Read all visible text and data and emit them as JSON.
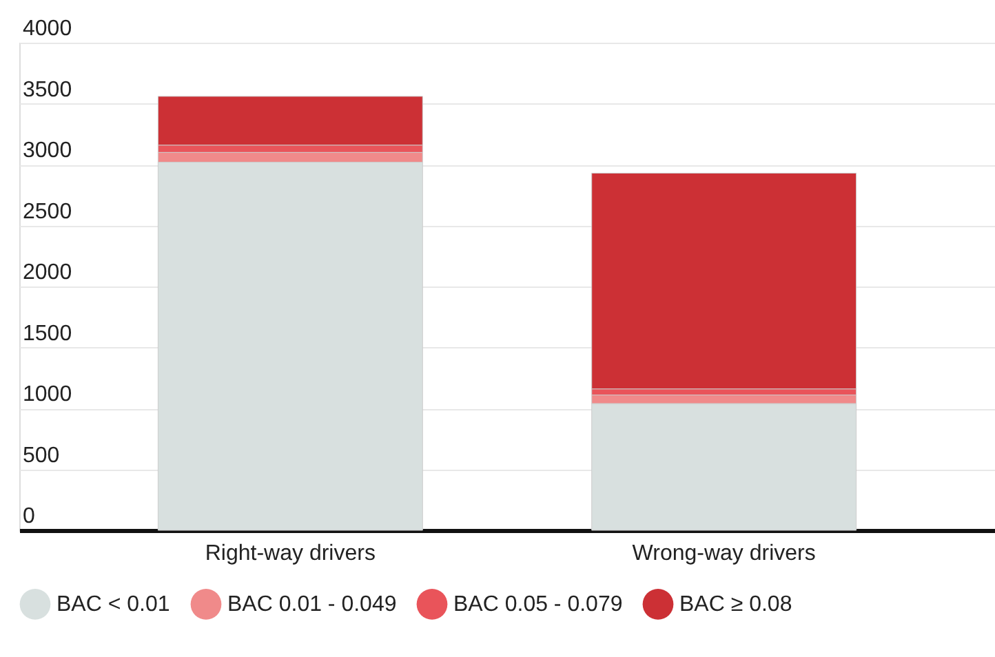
{
  "chart_data": {
    "type": "bar",
    "stacked": true,
    "categories": [
      "Right-way drivers",
      "Wrong-way drivers"
    ],
    "series": [
      {
        "name": "BAC < 0.01",
        "color": "#d8e0df",
        "values": [
          3020,
          1040
        ]
      },
      {
        "name": "BAC 0.01 - 0.049",
        "color": "#f08a8a",
        "values": [
          80,
          70
        ]
      },
      {
        "name": "BAC 0.05 - 0.079",
        "color": "#e9545a",
        "values": [
          60,
          50
        ]
      },
      {
        "name": "BAC ≥ 0.08",
        "color": "#cc3035",
        "values": [
          400,
          1770
        ]
      }
    ],
    "ylim": [
      0,
      4000
    ],
    "yticks": [
      0,
      500,
      1000,
      1500,
      2000,
      2500,
      3000,
      3500,
      4000
    ],
    "grid": "y",
    "legend": "bottom"
  }
}
